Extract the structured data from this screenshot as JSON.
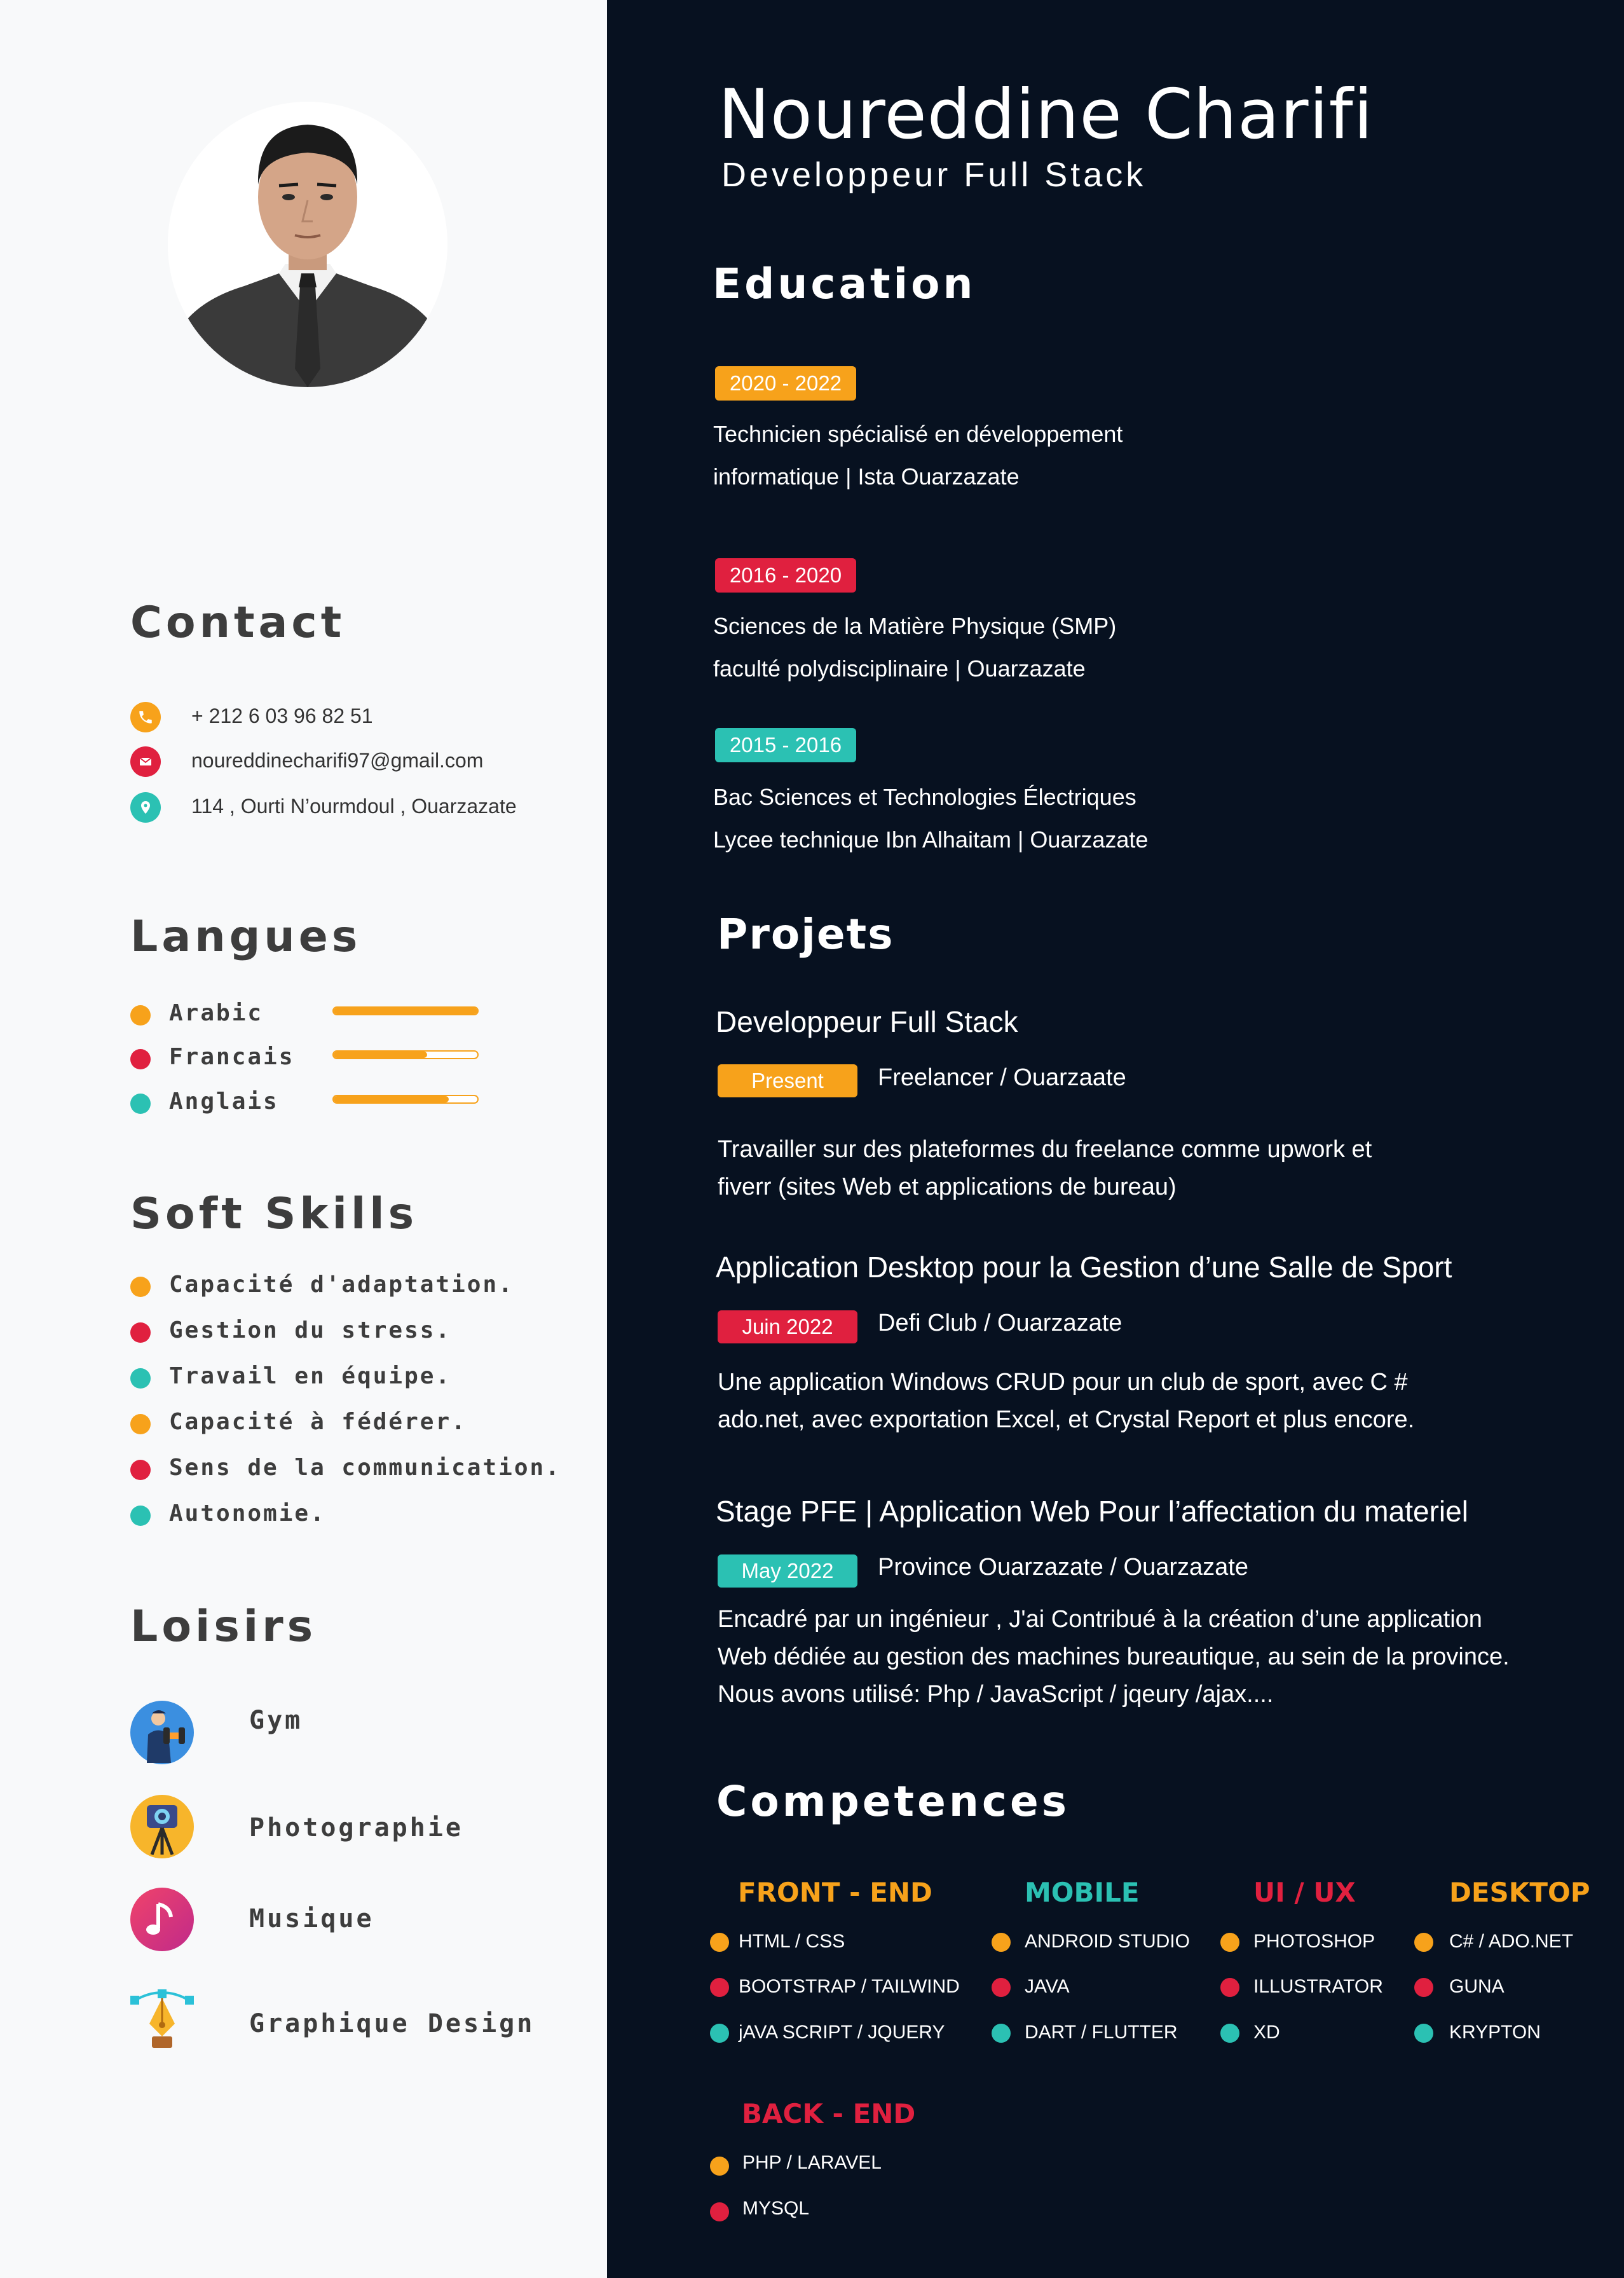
{
  "colors": {
    "orange": "#f7a21b",
    "red": "#e0203f",
    "teal": "#2bc1b3",
    "navy": "#071120"
  },
  "header": {
    "name": "Noureddine Charifi",
    "role": "Developpeur Full Stack"
  },
  "contact": {
    "title": "Contact",
    "phone": "+ 212 6 03 96 82 51",
    "email": "noureddinecharifi97@gmail.com",
    "address": "114 , Ourti N’ourmdoul , Ouarzazate"
  },
  "languages": {
    "title": "Langues",
    "items": [
      {
        "label": "Arabic",
        "level": 1.0
      },
      {
        "label": "Francais",
        "level": 0.65
      },
      {
        "label": "Anglais",
        "level": 0.8
      }
    ]
  },
  "soft_skills": {
    "title": "Soft Skills",
    "items": [
      "Capacité d'adaptation.",
      "Gestion du stress.",
      "Travail en équipe.",
      "Capacité à fédérer.",
      "Sens de la communication.",
      "Autonomie."
    ]
  },
  "hobbies": {
    "title": "Loisirs",
    "items": [
      "Gym",
      "Photographie",
      "Musique",
      "Graphique Design"
    ]
  },
  "education": {
    "title": "Education",
    "items": [
      {
        "period": "2020 - 2022",
        "line1": "Technicien spécialisé en développement",
        "line2": "informatique | Ista Ouarzazate"
      },
      {
        "period": "2016 - 2020",
        "line1": "Sciences de la Matière Physique (SMP)",
        "line2": "faculté polydisciplinaire | Ouarzazate"
      },
      {
        "period": "2015 - 2016",
        "line1": "Bac Sciences et Technologies Électriques",
        "line2": "Lycee technique Ibn Alhaitam | Ouarzazate"
      }
    ]
  },
  "projects": {
    "title": "Projets",
    "items": [
      {
        "title": "Developpeur Full Stack",
        "badge": "Present",
        "where": "Freelancer / Ouarzaate",
        "desc1": "Travailler sur des plateformes du freelance comme upwork et",
        "desc2": "fiverr (sites Web et applications de bureau)"
      },
      {
        "title": "Application Desktop pour la Gestion d’une Salle de Sport",
        "badge": "Juin 2022",
        "where": "Defi Club  / Ouarzazate",
        "desc1": "Une application Windows CRUD pour un club de sport, avec C #",
        "desc2": "ado.net, avec exportation Excel, et Crystal Report et plus encore."
      },
      {
        "title": "Stage PFE | Application Web Pour l’affectation du materiel",
        "badge": "May 2022",
        "where": "Province Ouarzazate / Ouarzazate",
        "desc1": "Encadré par un ingénieur , J'ai Contribué à la création d’une application",
        "desc2": "Web dédiée au gestion des machines bureautique, au sein de la province.",
        "desc3": "Nous avons utilisé: Php / JavaScript / jqeury /ajax...."
      }
    ]
  },
  "competences": {
    "title": "Competences",
    "categories": [
      {
        "name": "FRONT - END",
        "items": [
          "HTML / CSS",
          "BOOTSTRAP / TAILWIND",
          "jAVA SCRIPT / JQUERY"
        ]
      },
      {
        "name": "MOBILE",
        "items": [
          "ANDROID STUDIO",
          "JAVA",
          "DART / FLUTTER"
        ]
      },
      {
        "name": "UI / UX",
        "items": [
          "PHOTOSHOP",
          "ILLUSTRATOR",
          "XD"
        ]
      },
      {
        "name": "DESKTOP",
        "items": [
          "C# / ADO.NET",
          "GUNA",
          "KRYPTON"
        ]
      },
      {
        "name": "BACK - END",
        "items": [
          "PHP / LARAVEL",
          "MYSQL"
        ]
      }
    ]
  }
}
